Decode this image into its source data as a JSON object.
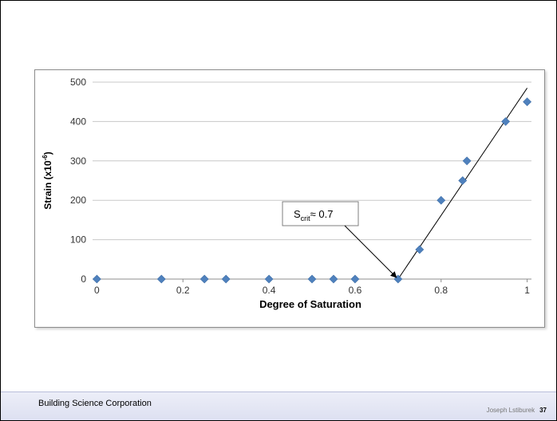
{
  "footer": {
    "company": "Building Science Corporation",
    "author": "Joseph Lstiburek",
    "page_number": "37"
  },
  "chart_data": {
    "type": "scatter",
    "xlabel": "Degree of Saturation",
    "ylabel_main": "Strain (x10",
    "ylabel_sup": "-6",
    "ylabel_end": ")",
    "xlim": [
      -0.01,
      1.01
    ],
    "ylim": [
      0,
      500
    ],
    "x_ticks": [
      0,
      0.2,
      0.4,
      0.6,
      0.8,
      1
    ],
    "x_tick_labels": [
      "0",
      "0.2",
      "0.4",
      "0.6",
      "0.8",
      "1"
    ],
    "y_ticks": [
      0,
      100,
      200,
      300,
      400,
      500
    ],
    "y_tick_labels": [
      "0",
      "100",
      "200",
      "300",
      "400",
      "500"
    ],
    "grid": "horizontal",
    "marker": "diamond",
    "marker_color": "#4f81bd",
    "series": [
      {
        "x": [
          0,
          0.15,
          0.25,
          0.3,
          0.4,
          0.5,
          0.55,
          0.6,
          0.7,
          0.75,
          0.8,
          0.85,
          0.86,
          0.95,
          1.0
        ],
        "y": [
          0,
          0,
          0,
          0,
          0,
          0,
          0,
          0,
          0,
          75,
          200,
          250,
          300,
          400,
          450
        ]
      }
    ],
    "trend_line": {
      "x": [
        0.7,
        1.0
      ],
      "y": [
        0,
        485
      ]
    },
    "annotation": {
      "text_main": "S",
      "text_sub": "crit",
      "text_rest": "≈ 0.7",
      "arrow_to": {
        "x": 0.7,
        "y": 0
      }
    }
  }
}
